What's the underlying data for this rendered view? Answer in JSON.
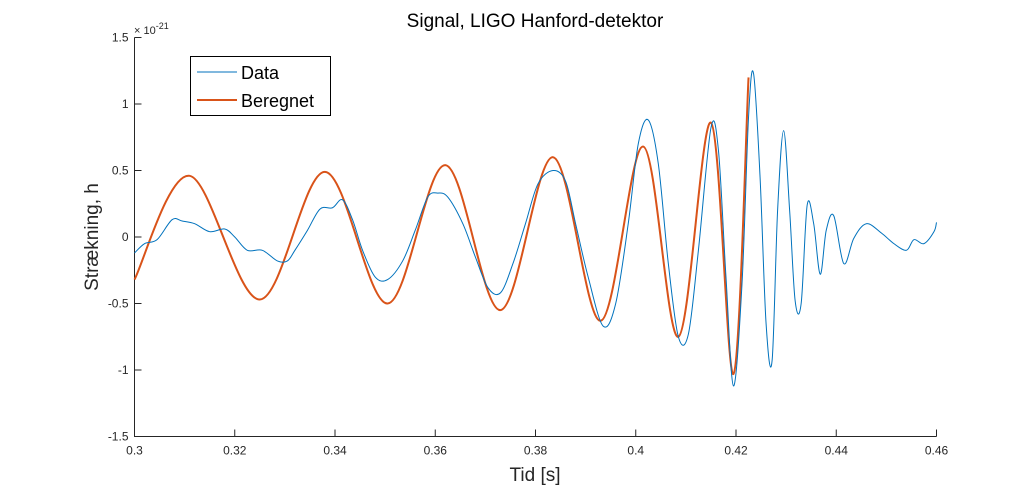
{
  "colors": {
    "data": "#0072BD",
    "fit": "#D95319",
    "axis": "#262626"
  },
  "chart_data": {
    "type": "line",
    "title": "Signal, LIGO Hanford-detektor",
    "xlabel": "Tid [s]",
    "ylabel": "Strækning, h",
    "y_exponent_label": "× 10",
    "y_exponent_power": "-21",
    "xlim": [
      0.3,
      0.46
    ],
    "ylim": [
      -1.5,
      1.5
    ],
    "xticks": [
      0.3,
      0.32,
      0.34,
      0.36,
      0.38,
      0.4,
      0.42,
      0.44,
      0.46
    ],
    "xtick_labels": [
      "0.3",
      "0.32",
      "0.34",
      "0.36",
      "0.38",
      "0.4",
      "0.42",
      "0.44",
      "0.46"
    ],
    "yticks": [
      -1.5,
      -1,
      -0.5,
      0,
      0.5,
      1,
      1.5
    ],
    "ytick_labels": [
      "-1.5",
      "-1",
      "-0.5",
      "0",
      "0.5",
      "1",
      "1.5"
    ],
    "grid": false,
    "legend_position": "top-left",
    "series": [
      {
        "name": "Data",
        "color": "#0072BD",
        "x": [
          0.3,
          0.302,
          0.3045,
          0.3075,
          0.3095,
          0.312,
          0.315,
          0.318,
          0.32,
          0.3225,
          0.3255,
          0.3285,
          0.3305,
          0.332,
          0.3345,
          0.337,
          0.3395,
          0.3415,
          0.3435,
          0.3455,
          0.348,
          0.3505,
          0.3535,
          0.356,
          0.3585,
          0.3605,
          0.3625,
          0.3655,
          0.368,
          0.3705,
          0.373,
          0.3755,
          0.378,
          0.3805,
          0.3835,
          0.386,
          0.388,
          0.3905,
          0.3935,
          0.396,
          0.3985,
          0.4005,
          0.4025,
          0.4045,
          0.4065,
          0.4085,
          0.4105,
          0.4125,
          0.415,
          0.4165,
          0.418,
          0.4195,
          0.4212,
          0.4225,
          0.4235,
          0.4248,
          0.426,
          0.4272,
          0.4283,
          0.4295,
          0.4307,
          0.4318,
          0.433,
          0.4342,
          0.4355,
          0.4368,
          0.438,
          0.4395,
          0.4415,
          0.4435,
          0.446,
          0.449,
          0.4515,
          0.454,
          0.4555,
          0.4575,
          0.4595,
          0.46
        ],
        "y": [
          -0.12,
          -0.05,
          -0.02,
          0.13,
          0.12,
          0.1,
          0.04,
          0.06,
          0.0,
          -0.1,
          -0.1,
          -0.18,
          -0.18,
          -0.1,
          0.05,
          0.21,
          0.22,
          0.28,
          0.13,
          -0.1,
          -0.3,
          -0.32,
          -0.18,
          0.05,
          0.3,
          0.33,
          0.3,
          0.1,
          -0.15,
          -0.38,
          -0.42,
          -0.2,
          0.1,
          0.4,
          0.5,
          0.42,
          0.1,
          -0.3,
          -0.67,
          -0.5,
          0.1,
          0.7,
          0.88,
          0.55,
          -0.2,
          -0.75,
          -0.73,
          -0.1,
          0.82,
          0.65,
          -0.3,
          -1.12,
          -0.35,
          0.9,
          1.23,
          0.45,
          -0.65,
          -0.93,
          0.2,
          0.8,
          0.2,
          -0.48,
          -0.5,
          0.24,
          0.1,
          -0.28,
          0.05,
          0.16,
          -0.2,
          -0.01,
          0.1,
          0.03,
          -0.05,
          -0.1,
          -0.02,
          -0.05,
          0.04,
          0.11
        ]
      },
      {
        "name": "Beregnet",
        "color": "#D95319",
        "x": [
          0.3,
          0.311,
          0.325,
          0.338,
          0.3505,
          0.362,
          0.373,
          0.3835,
          0.393,
          0.4015,
          0.4085,
          0.415,
          0.4195,
          0.4225
        ],
        "y": [
          -0.32,
          0.46,
          -0.47,
          0.49,
          -0.5,
          0.54,
          -0.55,
          0.6,
          -0.63,
          0.68,
          -0.75,
          0.86,
          -1.03,
          1.2
        ]
      }
    ]
  }
}
